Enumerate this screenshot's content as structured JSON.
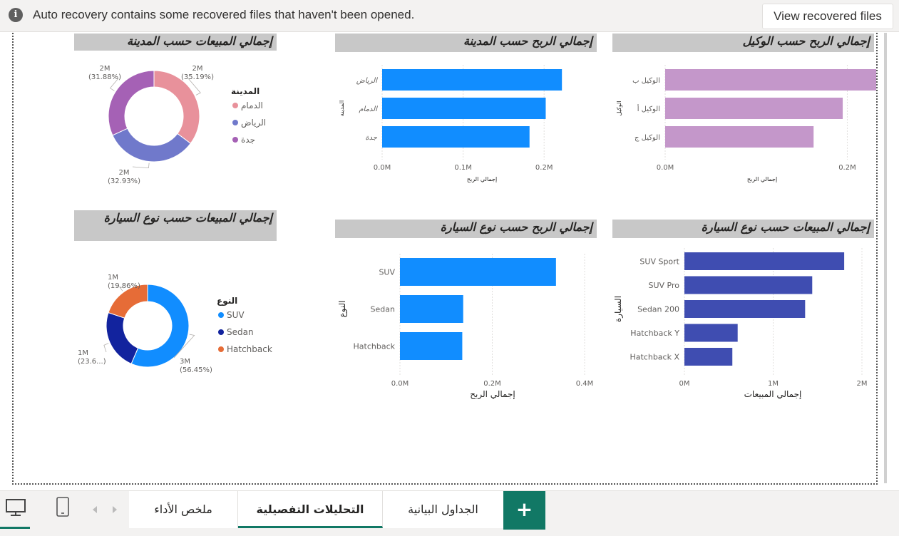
{
  "banner": {
    "info_glyph": "i",
    "message": "Auto recovery contains some recovered files that haven't been opened.",
    "button_label": "View recovered files"
  },
  "charts": {
    "sales_by_city": {
      "title": "إجمالي المبيعات حسب المدينة",
      "legend_title": "المدينة",
      "slices": [
        {
          "name": "الدمام",
          "value_label": "2M",
          "pct_label": "(35.19%)",
          "pct": 35.19,
          "color": "#e8919b"
        },
        {
          "name": "الرياض",
          "value_label": "2M",
          "pct_label": "(32.93%)",
          "pct": 32.93,
          "color": "#7079cb"
        },
        {
          "name": "جدة",
          "value_label": "2M",
          "pct_label": "(31.88%)",
          "pct": 31.88,
          "color": "#a561b5"
        }
      ]
    },
    "profit_by_city": {
      "title": "إجمالي الربح حسب المدينة",
      "ylabel": "المدينة",
      "xlabel": "إجمالي الربح",
      "categories": [
        "الرياض",
        "الدمام",
        "جدة"
      ],
      "values": [
        0.222,
        0.202,
        0.182
      ],
      "ticks": [
        "0.0M",
        "0.1M",
        "0.2M"
      ],
      "color": "#118dff"
    },
    "profit_by_agent": {
      "title": "إجمالي الربح حسب الوكيل",
      "ylabel": "الوكيل",
      "xlabel": "إجمالي الربح",
      "categories": [
        "الوكيل ب",
        "الوكيل أ",
        "الوكيل ج"
      ],
      "values": [
        0.232,
        0.195,
        0.163
      ],
      "ticks": [
        "0.0M",
        "0.2M"
      ],
      "color": "#c497ca"
    },
    "sales_by_car": {
      "title": "إجمالي المبيعات حسب نوع السيارة",
      "legend_title": "النوع",
      "slices": [
        {
          "name": "SUV",
          "value_label": "3M",
          "pct_label": "(56.45%)",
          "pct": 56.45,
          "color": "#118dff"
        },
        {
          "name": "Sedan",
          "value_label": "1M",
          "pct_label": "(23.6...)",
          "pct": 23.69,
          "color": "#12239e"
        },
        {
          "name": "Hatchback",
          "value_label": "1M",
          "pct_label": "(19.86%)",
          "pct": 19.86,
          "color": "#e66c37"
        }
      ]
    },
    "profit_by_car": {
      "title": "إجمالي الربح حسب نوع السيارة",
      "ylabel": "النوع",
      "xlabel": "إجمالي الربح",
      "categories": [
        "SUV",
        "Sedan",
        "Hatchback"
      ],
      "values": [
        0.338,
        0.137,
        0.135
      ],
      "ticks": [
        "0.0M",
        "0.2M",
        "0.4M"
      ],
      "color": "#118dff"
    },
    "sales_by_model": {
      "title": "إجمالي المبيعات حسب نوع السيارة",
      "ylabel": "السيارة",
      "xlabel": "إجمالي المبيعات",
      "categories": [
        "SUV Sport",
        "SUV Pro",
        "Sedan 200",
        "Hatchback Y",
        "Hatchback X"
      ],
      "values": [
        1.8,
        1.44,
        1.36,
        0.6,
        0.54
      ],
      "ticks": [
        "0M",
        "1M",
        "2M"
      ],
      "color": "#3f4db1"
    }
  },
  "tabs": {
    "t1": "ملخص الأداء",
    "t2": "التحليلات التفصيلية",
    "t3": "الجداول البيانية",
    "add": "+"
  }
}
